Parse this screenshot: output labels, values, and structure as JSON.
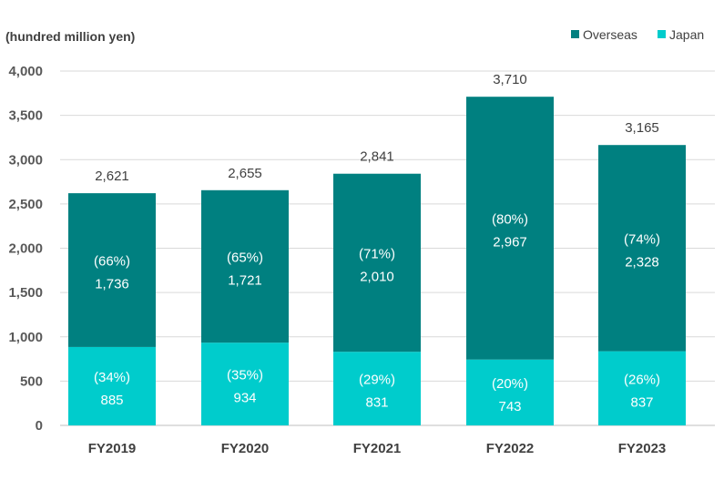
{
  "chart_data": {
    "type": "bar",
    "stacked": true,
    "unit_label": "(hundred million yen)",
    "categories": [
      "FY2019",
      "FY2020",
      "FY2021",
      "FY2022",
      "FY2023"
    ],
    "series": [
      {
        "name": "Japan",
        "color": "#00CCCC",
        "values": [
          885,
          934,
          831,
          743,
          837
        ],
        "value_labels": [
          "885",
          "934",
          "831",
          "743",
          "837"
        ],
        "share_labels": [
          "(34%)",
          "(35%)",
          "(29%)",
          "(20%)",
          "(26%)"
        ]
      },
      {
        "name": "Overseas",
        "color": "#008080",
        "values": [
          1736,
          1721,
          2010,
          2967,
          2328
        ],
        "value_labels": [
          "1,736",
          "1,721",
          "2,010",
          "2,967",
          "2,328"
        ],
        "share_labels": [
          "(66%)",
          "(65%)",
          "(71%)",
          "(80%)",
          "(74%)"
        ]
      }
    ],
    "totals": [
      2621,
      2655,
      2841,
      3710,
      3165
    ],
    "total_labels": [
      "2,621",
      "2,655",
      "2,841",
      "3,710",
      "3,165"
    ],
    "legend_order": [
      "Overseas",
      "Japan"
    ],
    "legend_position": "top-right",
    "ylim": [
      0,
      4000
    ],
    "yticks": [
      0,
      500,
      1000,
      1500,
      2000,
      2500,
      3000,
      3500,
      4000
    ],
    "ytick_labels": [
      "0",
      "500",
      "1,000",
      "1,500",
      "2,000",
      "2,500",
      "3,000",
      "3,500",
      "4,000"
    ],
    "grid": true,
    "gridline_color": "#D9D9D9"
  }
}
